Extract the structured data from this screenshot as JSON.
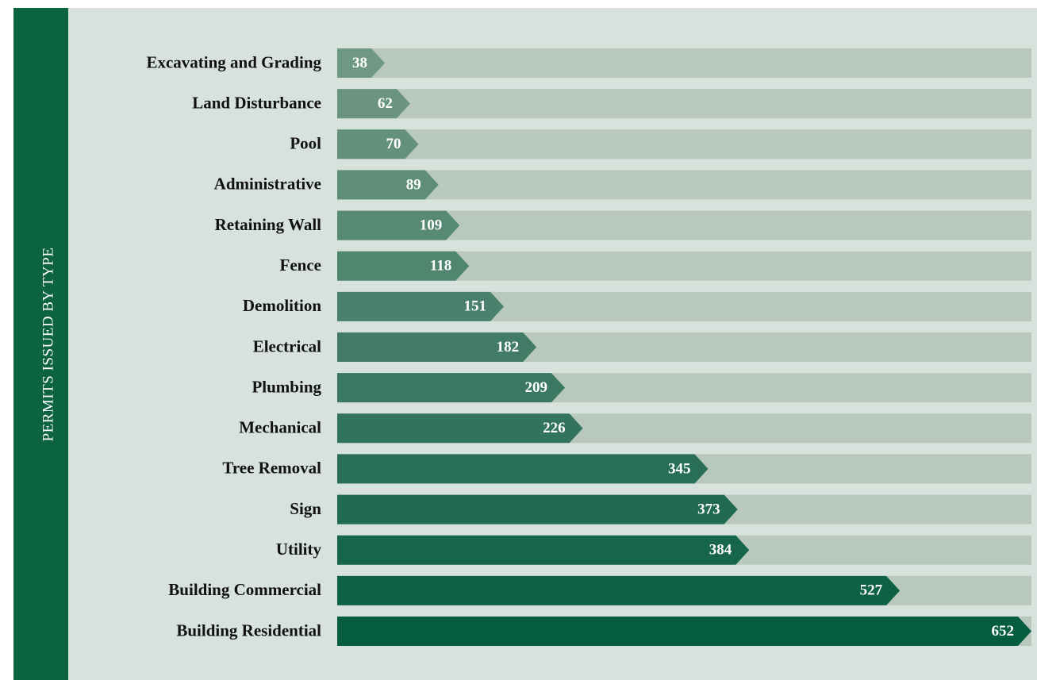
{
  "chart_data": {
    "type": "bar",
    "title": "PERMITS ISSUED BY TYPE",
    "categories": [
      "Excavating and Grading",
      "Land Disturbance",
      "Pool",
      "Administrative",
      "Retaining Wall",
      "Fence",
      "Demolition",
      "Electrical",
      "Plumbing",
      "Mechanical",
      "Tree Removal",
      "Sign",
      "Utility",
      "Building Commercial",
      "Building Residential"
    ],
    "values": [
      38,
      62,
      70,
      89,
      109,
      118,
      151,
      182,
      209,
      226,
      345,
      373,
      384,
      527,
      652
    ],
    "colors": [
      "#6f9884",
      "#6a9480",
      "#64917c",
      "#5e8d78",
      "#578974",
      "#508570",
      "#49816c",
      "#427c67",
      "#3a7862",
      "#32735d",
      "#296f58",
      "#206a52",
      "#17664c",
      "#0d6145",
      "#045d3f"
    ],
    "track_color": "#b8c8bd"
  }
}
